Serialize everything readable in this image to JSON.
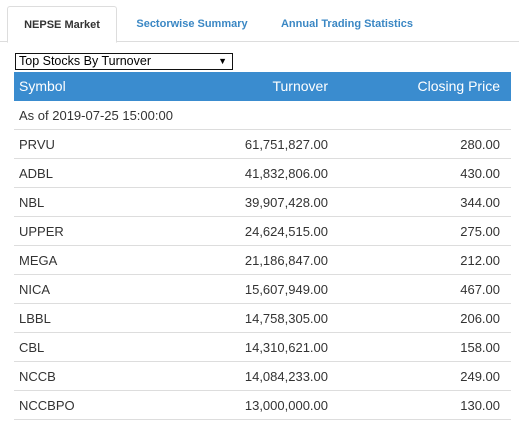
{
  "tabs": [
    {
      "label": "NEPSE Market",
      "active": true
    },
    {
      "label": "Sectorwise Summary",
      "active": false
    },
    {
      "label": "Annual Trading Statistics",
      "active": false
    }
  ],
  "dropdown": {
    "selected": "Top Stocks By Turnover",
    "arrow_icon": "triangle-down-icon"
  },
  "table": {
    "headers": {
      "symbol": "Symbol",
      "turnover": "Turnover",
      "closing_price": "Closing Price"
    },
    "as_of": "As of 2019-07-25 15:00:00",
    "rows": [
      {
        "symbol": "PRVU",
        "turnover": "61,751,827.00",
        "closing_price": "280.00"
      },
      {
        "symbol": "ADBL",
        "turnover": "41,832,806.00",
        "closing_price": "430.00"
      },
      {
        "symbol": "NBL",
        "turnover": "39,907,428.00",
        "closing_price": "344.00"
      },
      {
        "symbol": "UPPER",
        "turnover": "24,624,515.00",
        "closing_price": "275.00"
      },
      {
        "symbol": "MEGA",
        "turnover": "21,186,847.00",
        "closing_price": "212.00"
      },
      {
        "symbol": "NICA",
        "turnover": "15,607,949.00",
        "closing_price": "467.00"
      },
      {
        "symbol": "LBBL",
        "turnover": "14,758,305.00",
        "closing_price": "206.00"
      },
      {
        "symbol": "CBL",
        "turnover": "14,310,621.00",
        "closing_price": "158.00"
      },
      {
        "symbol": "NCCB",
        "turnover": "14,084,233.00",
        "closing_price": "249.00"
      },
      {
        "symbol": "NCCBPO",
        "turnover": "13,000,000.00",
        "closing_price": "130.00"
      }
    ]
  },
  "colors": {
    "header_bg": "#3a8ccf",
    "tab_link": "#3a87c4",
    "border": "#dddddd"
  }
}
